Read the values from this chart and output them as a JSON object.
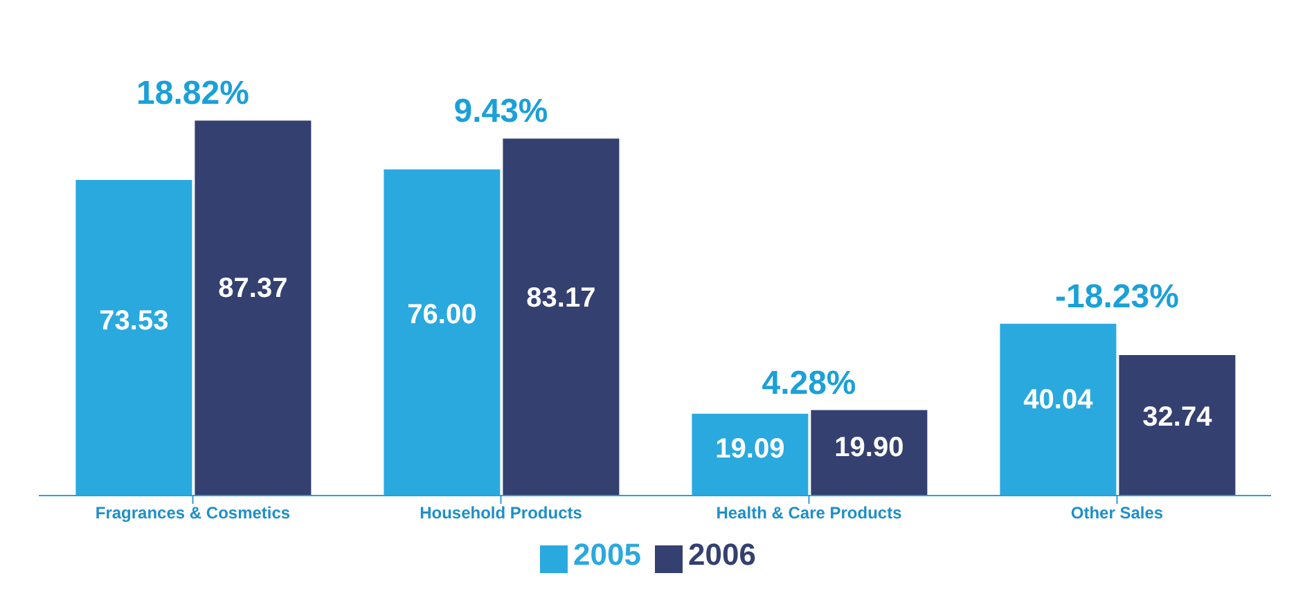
{
  "chart_data": {
    "type": "bar",
    "categories": [
      "Fragrances & Cosmetics",
      "Household Products",
      "Health & Care Products",
      "Other Sales"
    ],
    "series": [
      {
        "name": "2005",
        "color": "#2aa9df",
        "values": [
          73.53,
          76.0,
          19.09,
          40.04
        ],
        "value_labels": [
          "73.53",
          "76.00",
          "19.09",
          "40.04"
        ]
      },
      {
        "name": "2006",
        "color": "#34406f",
        "values": [
          87.37,
          83.17,
          19.9,
          32.74
        ],
        "value_labels": [
          "87.37",
          "83.17",
          "19.90",
          "32.74"
        ]
      }
    ],
    "annotations": [
      "18.82%",
      "9.43%",
      "4.28%",
      "-18.23%"
    ],
    "legend": "bottom"
  }
}
